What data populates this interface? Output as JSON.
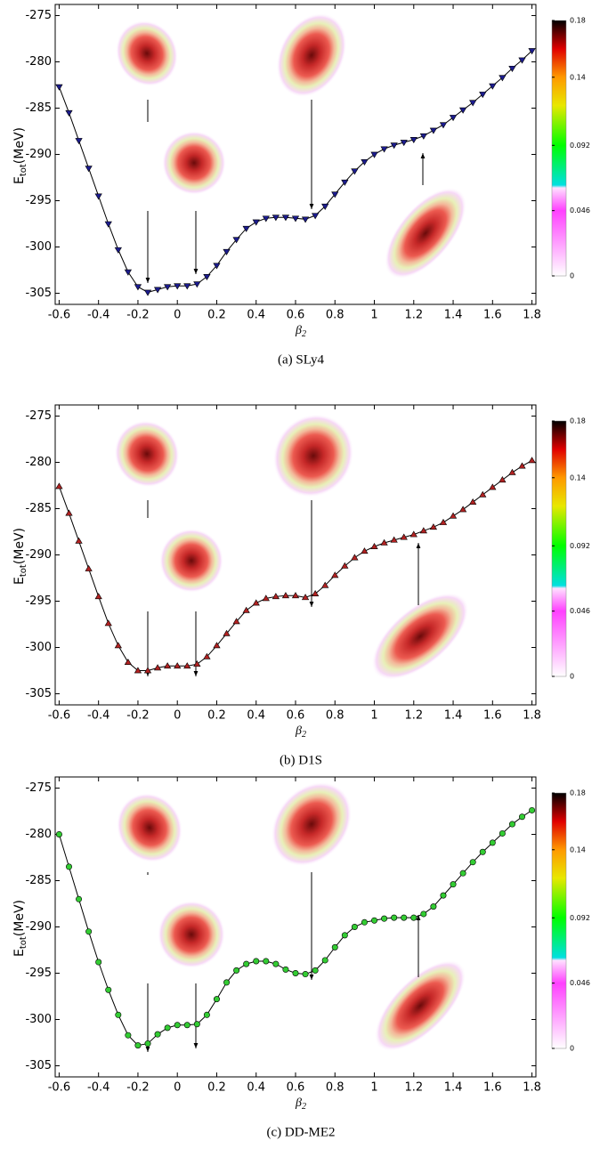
{
  "chart_data": [
    {
      "type": "line",
      "caption": "(a) SLy4",
      "ylabel": [
        "E",
        "tot",
        "(MeV)"
      ],
      "xlabel": [
        "β",
        "2"
      ],
      "x": [
        -0.6,
        -0.55,
        -0.5,
        -0.45,
        -0.4,
        -0.35,
        -0.3,
        -0.25,
        -0.2,
        -0.15,
        -0.1,
        -0.05,
        0,
        0.05,
        0.1,
        0.15,
        0.2,
        0.25,
        0.3,
        0.35,
        0.4,
        0.45,
        0.5,
        0.55,
        0.6,
        0.65,
        0.7,
        0.75,
        0.8,
        0.85,
        0.9,
        0.95,
        1,
        1.05,
        1.1,
        1.15,
        1.2,
        1.25,
        1.3,
        1.35,
        1.4,
        1.45,
        1.5,
        1.55,
        1.6,
        1.65,
        1.7,
        1.75,
        1.8
      ],
      "series": [
        {
          "color": "#1c1c8e",
          "marker": "v",
          "values": [
            -282.7,
            -285.5,
            -288.5,
            -291.5,
            -294.5,
            -297.5,
            -300.3,
            -302.7,
            -304.3,
            -304.9,
            -304.6,
            -304.3,
            -304.2,
            -304.2,
            -304.0,
            -303.2,
            -302.0,
            -300.5,
            -299.2,
            -298.0,
            -297.3,
            -296.9,
            -296.8,
            -296.8,
            -296.9,
            -297.0,
            -296.6,
            -295.6,
            -294.3,
            -293.0,
            -291.8,
            -290.8,
            -290.0,
            -289.4,
            -289.0,
            -288.7,
            -288.4,
            -288.0,
            -287.4,
            -286.8,
            -286.0,
            -285.2,
            -284.4,
            -283.5,
            -282.6,
            -281.7,
            -280.7,
            -279.8,
            -278.8
          ]
        }
      ],
      "xlim": [
        -0.62,
        1.82
      ],
      "ylim": [
        -306.2,
        -273.8
      ],
      "xticks": [
        -0.6,
        -0.4,
        -0.2,
        0,
        0.2,
        0.4,
        0.6,
        0.8,
        1,
        1.2,
        1.4,
        1.6,
        1.8
      ],
      "yticks": [
        -275,
        -280,
        -285,
        -290,
        -295,
        -300,
        -305
      ],
      "colorbar": {
        "lim": [
          0,
          0.18
        ],
        "ticks": [
          0.18,
          0.14,
          0.092,
          0.046,
          0
        ]
      }
    },
    {
      "type": "line",
      "caption": "(b) D1S",
      "ylabel": [
        "E",
        "tot",
        "(MeV)"
      ],
      "xlabel": [
        "β",
        "2"
      ],
      "x": [
        -0.6,
        -0.55,
        -0.5,
        -0.45,
        -0.4,
        -0.35,
        -0.3,
        -0.25,
        -0.2,
        -0.15,
        -0.1,
        -0.05,
        0,
        0.05,
        0.1,
        0.15,
        0.2,
        0.25,
        0.3,
        0.35,
        0.4,
        0.45,
        0.5,
        0.55,
        0.6,
        0.65,
        0.7,
        0.75,
        0.8,
        0.85,
        0.9,
        0.95,
        1,
        1.05,
        1.1,
        1.15,
        1.2,
        1.25,
        1.3,
        1.35,
        1.4,
        1.45,
        1.5,
        1.55,
        1.6,
        1.65,
        1.7,
        1.75,
        1.8
      ],
      "series": [
        {
          "color": "#b22222",
          "marker": "^",
          "values": [
            -282.6,
            -285.5,
            -288.5,
            -291.5,
            -294.5,
            -297.4,
            -299.8,
            -301.6,
            -302.5,
            -302.5,
            -302.2,
            -302.0,
            -302.0,
            -302.0,
            -301.8,
            -301.0,
            -299.8,
            -298.5,
            -297.2,
            -296.0,
            -295.2,
            -294.7,
            -294.5,
            -294.4,
            -294.4,
            -294.6,
            -294.2,
            -293.3,
            -292.2,
            -291.2,
            -290.3,
            -289.6,
            -289.1,
            -288.7,
            -288.4,
            -288.1,
            -287.8,
            -287.4,
            -287.0,
            -286.5,
            -285.8,
            -285.1,
            -284.3,
            -283.5,
            -282.7,
            -281.9,
            -281.1,
            -280.4,
            -279.8
          ]
        }
      ],
      "xlim": [
        -0.62,
        1.82
      ],
      "ylim": [
        -306.2,
        -273.8
      ],
      "xticks": [
        -0.6,
        -0.4,
        -0.2,
        0,
        0.2,
        0.4,
        0.6,
        0.8,
        1,
        1.2,
        1.4,
        1.6,
        1.8
      ],
      "yticks": [
        -275,
        -280,
        -285,
        -290,
        -295,
        -300,
        -305
      ],
      "colorbar": {
        "lim": [
          0,
          0.18
        ],
        "ticks": [
          0.18,
          0.14,
          0.092,
          0.046,
          0
        ]
      }
    },
    {
      "type": "line",
      "caption": "(c) DD-ME2",
      "ylabel": [
        "E",
        "tot",
        "(MeV)"
      ],
      "xlabel": [
        "β",
        "2"
      ],
      "x": [
        -0.6,
        -0.55,
        -0.5,
        -0.45,
        -0.4,
        -0.35,
        -0.3,
        -0.25,
        -0.2,
        -0.15,
        -0.1,
        -0.05,
        0,
        0.05,
        0.1,
        0.15,
        0.2,
        0.25,
        0.3,
        0.35,
        0.4,
        0.45,
        0.5,
        0.55,
        0.6,
        0.65,
        0.7,
        0.75,
        0.8,
        0.85,
        0.9,
        0.95,
        1,
        1.05,
        1.1,
        1.15,
        1.2,
        1.25,
        1.3,
        1.35,
        1.4,
        1.45,
        1.5,
        1.55,
        1.6,
        1.65,
        1.7,
        1.75,
        1.8
      ],
      "series": [
        {
          "color": "#33cc33",
          "marker": "o",
          "values": [
            -280.0,
            -283.5,
            -287.0,
            -290.5,
            -293.8,
            -296.8,
            -299.5,
            -301.7,
            -302.8,
            -302.6,
            -301.6,
            -300.9,
            -300.6,
            -300.6,
            -300.5,
            -299.5,
            -297.8,
            -296.0,
            -294.7,
            -294.0,
            -293.7,
            -293.7,
            -294.0,
            -294.6,
            -295.0,
            -295.1,
            -294.7,
            -293.6,
            -292.2,
            -290.9,
            -290.0,
            -289.5,
            -289.3,
            -289.1,
            -289.0,
            -289.0,
            -289.0,
            -288.6,
            -287.8,
            -286.6,
            -285.4,
            -284.2,
            -283.0,
            -281.9,
            -280.9,
            -279.9,
            -278.9,
            -278.1,
            -277.4
          ]
        }
      ],
      "xlim": [
        -0.62,
        1.82
      ],
      "ylim": [
        -306.2,
        -273.8
      ],
      "xticks": [
        -0.6,
        -0.4,
        -0.2,
        0,
        0.2,
        0.4,
        0.6,
        0.8,
        1,
        1.2,
        1.4,
        1.6,
        1.8
      ],
      "yticks": [
        -275,
        -280,
        -285,
        -290,
        -295,
        -300,
        -305
      ],
      "colorbar": {
        "lim": [
          0,
          0.18
        ],
        "ticks": [
          0.18,
          0.14,
          0.092,
          0.046,
          0
        ]
      }
    }
  ]
}
